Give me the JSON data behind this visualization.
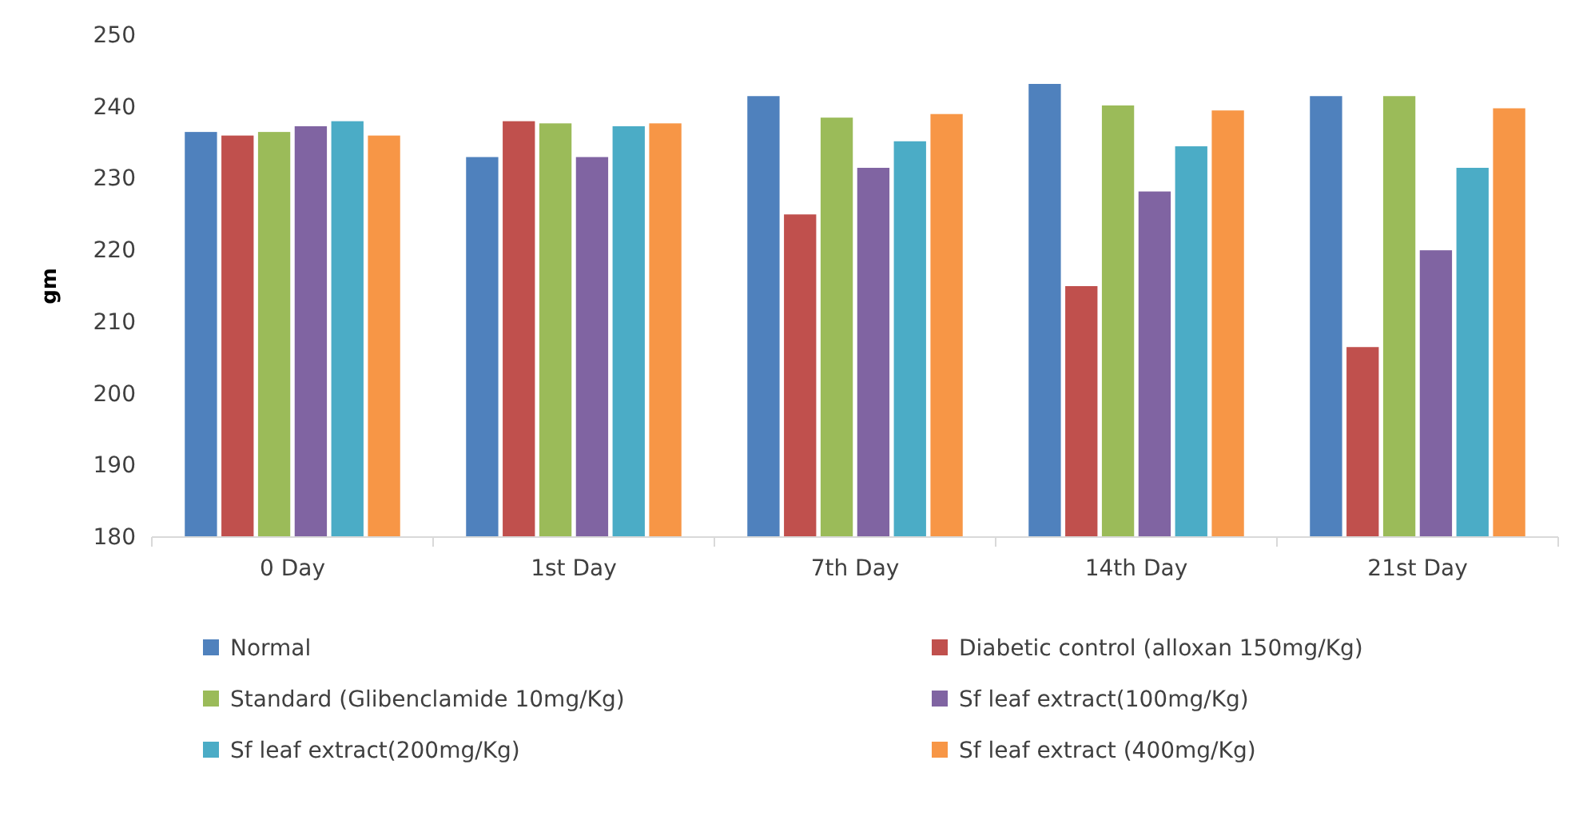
{
  "chart_data": {
    "type": "bar",
    "ylabel": "gm",
    "categories": [
      "0 Day",
      "1st Day",
      "7th Day",
      "14th Day",
      "21st Day"
    ],
    "series": [
      {
        "name": "Normal",
        "color": "#4f81bd",
        "values": [
          236.5,
          233,
          241.5,
          243.2,
          241.5
        ]
      },
      {
        "name": "Diabetic control (alloxan 150mg/Kg)",
        "color": "#c0504d",
        "values": [
          236,
          238,
          225,
          215,
          206.5
        ]
      },
      {
        "name": "Standard (Glibenclamide 10mg/Kg)",
        "color": "#9bbb59",
        "values": [
          236.5,
          237.7,
          238.5,
          240.2,
          241.5
        ]
      },
      {
        "name": "Sf leaf extract(100mg/Kg)",
        "color": "#8064a2",
        "values": [
          237.3,
          233,
          231.5,
          228.2,
          220
        ]
      },
      {
        "name": "Sf leaf extract(200mg/Kg)",
        "color": "#4bacc6",
        "values": [
          238,
          237.3,
          235.2,
          234.5,
          231.5
        ]
      },
      {
        "name": "Sf leaf extract (400mg/Kg)",
        "color": "#f79646",
        "values": [
          236,
          237.7,
          239,
          239.5,
          239.8
        ]
      }
    ],
    "ylim": [
      180,
      250
    ],
    "yticks": [
      180,
      190,
      200,
      210,
      220,
      230,
      240,
      250
    ],
    "legend": "bottom",
    "grid": false
  }
}
